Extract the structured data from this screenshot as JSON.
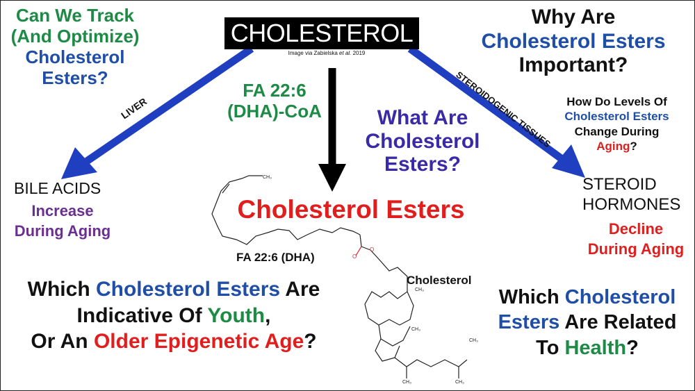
{
  "title": "CHOLESTEROL",
  "credit": {
    "prefix": "Image via Zabielska ",
    "etal": "et al.",
    "year": " 2019"
  },
  "arrows": {
    "left_label": "LIVER",
    "right_label": "STEROIDOGENIC TISSUES",
    "left_color": "#1f3fc0",
    "right_color": "#1f3fc0",
    "center_color": "#000000"
  },
  "top_left": {
    "line1": "Can We Track",
    "line2": "(And Optimize)",
    "line3": "Cholesterol",
    "line4": "Esters?"
  },
  "fa_coa": {
    "line1": "FA 22:6",
    "line2": "(DHA)-CoA"
  },
  "what_are": {
    "line1": "What Are",
    "line2": "Cholesterol",
    "line3": "Esters?"
  },
  "top_right": {
    "line1": "Why Are",
    "line2": "Cholesterol Esters",
    "line3": "Important?"
  },
  "levels": {
    "line1": "How Do Levels Of",
    "line2": "Cholesterol Esters",
    "line3": "Change During",
    "line4a": "Aging",
    "line4b": "?"
  },
  "bile": {
    "label": "BILE  ACIDS",
    "line1": "Increase",
    "line2": "During Aging"
  },
  "center": {
    "label": "Cholesterol Esters",
    "fa_label": "FA 22:6 (DHA)",
    "chol_label": "Cholesterol",
    "ch3": "CH₃",
    "o": "O"
  },
  "steroid": {
    "line1": "STEROID",
    "line2": "HORMONES",
    "line3": "Decline",
    "line4": "During Aging"
  },
  "bottom_left": {
    "w1": "Which ",
    "w2": "Cholesterol Esters",
    "w3": " Are",
    "w4": "Indicative Of ",
    "w5": "Youth",
    "w6": ",",
    "w7": "Or An ",
    "w8": "Older Epigenetic Age",
    "w9": "?"
  },
  "bottom_right": {
    "w1": "Which ",
    "w2": "Cholesterol",
    "w3": "Esters",
    "w4": " Are Related",
    "w5": "To ",
    "w6": "Health",
    "w7": "?"
  },
  "colors": {
    "green": "#1d8a45",
    "blue": "#1f4ea6",
    "purple": "#3b2aa6",
    "red": "#e01e1e",
    "violet": "#6b2f90"
  }
}
